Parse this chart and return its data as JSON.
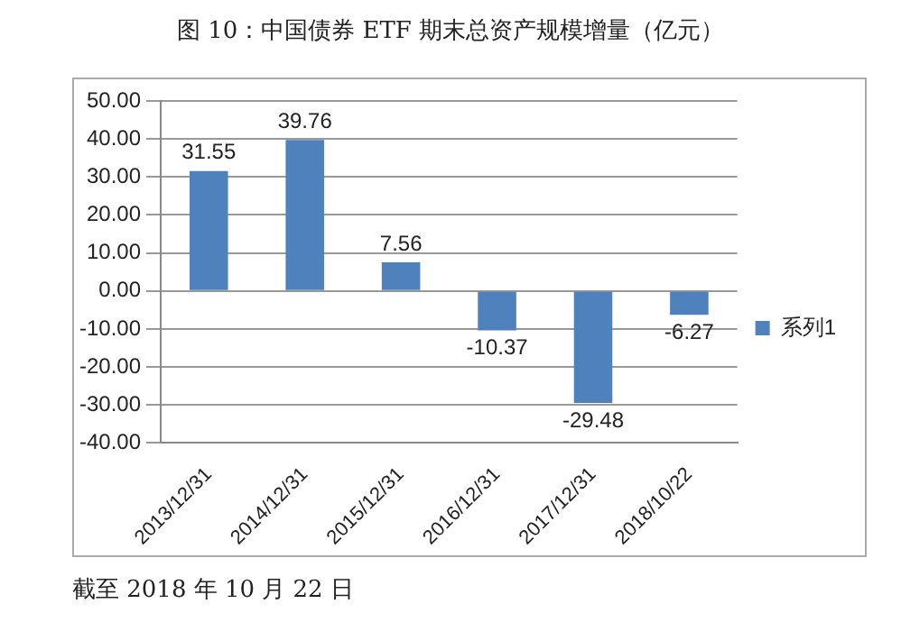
{
  "chart_data": {
    "type": "bar",
    "title": "图 10：中国债券 ETF 期末总资产规模增量（亿元）",
    "categories": [
      "2013/12/31",
      "2014/12/31",
      "2015/12/31",
      "2016/12/31",
      "2017/12/31",
      "2018/10/22"
    ],
    "series": [
      {
        "name": "系列1",
        "color": "#4f81bd",
        "values": [
          31.55,
          39.76,
          7.56,
          -10.37,
          -29.48,
          -6.27
        ]
      }
    ],
    "ylim": [
      -40,
      50
    ],
    "yticks": [
      {
        "value": -40,
        "label": "-40.00"
      },
      {
        "value": -30,
        "label": "-30.00"
      },
      {
        "value": -20,
        "label": "-20.00"
      },
      {
        "value": -10,
        "label": "-10.00"
      },
      {
        "value": 0,
        "label": "0.00"
      },
      {
        "value": 10,
        "label": "10.00"
      },
      {
        "value": 20,
        "label": "20.00"
      },
      {
        "value": 30,
        "label": "30.00"
      },
      {
        "value": 40,
        "label": "40.00"
      },
      {
        "value": 50,
        "label": "50.00"
      }
    ],
    "grid": "y",
    "legend": "right",
    "data_labels": true,
    "annotations": [
      "截至 2018 年 10 月 22 日"
    ]
  }
}
